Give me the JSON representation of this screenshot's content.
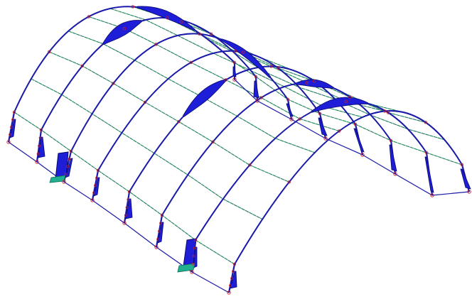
{
  "diagram": {
    "type": "structural-frame-3d",
    "structure": "barrel-vault",
    "frames": 6,
    "background": "#ffffff",
    "colors": {
      "frame": "#1a1aa8",
      "purlin": "#2fbf3f",
      "diagram_fill": "#1e1ed8",
      "diagram_edge": "#0a0a6a",
      "support_fill": "#20b090",
      "node": "#d02020"
    }
  }
}
